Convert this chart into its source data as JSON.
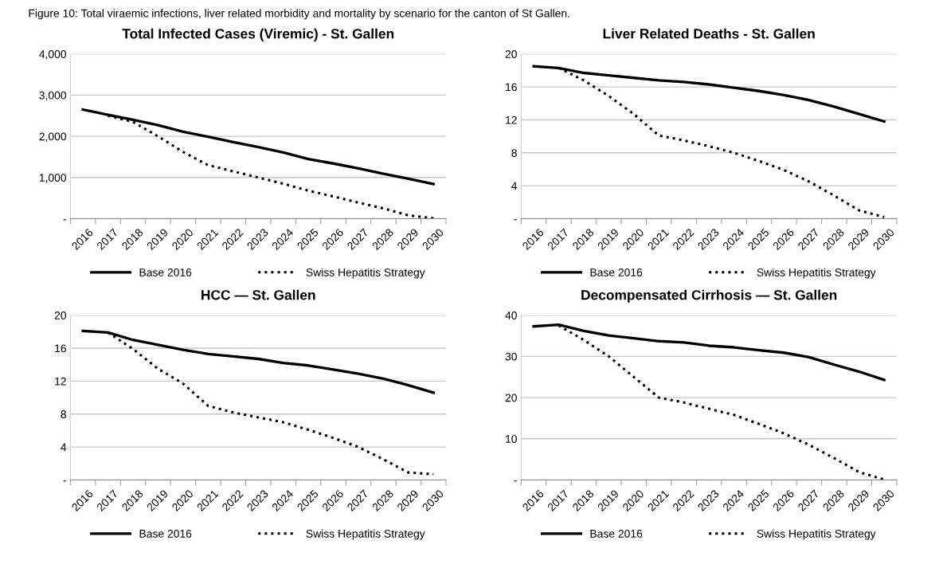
{
  "chart_data": [
    {
      "type": "line",
      "title": "Total Infected Cases (Viremic) - St. Gallen",
      "annotations": [
        "Figure 10: Total viraemic infections, liver related morbidity and mortality by scenario for the canton of St Gallen."
      ],
      "categories": [
        "2016",
        "2017",
        "2018",
        "2019",
        "2020",
        "2021",
        "2022",
        "2023",
        "2024",
        "2025",
        "2026",
        "2027",
        "2028",
        "2029",
        "2030"
      ],
      "series": [
        {
          "name": "Base 2016",
          "color": "#000000",
          "line_style": "solid",
          "values": [
            2650,
            2520,
            2400,
            2270,
            2110,
            1990,
            1860,
            1740,
            1610,
            1450,
            1340,
            1220,
            1090,
            970,
            840
          ]
        },
        {
          "name": "Swiss Hepatitis Strategy",
          "color": "#000000",
          "line_style": "dotted",
          "values": [
            null,
            2500,
            2350,
            2000,
            1620,
            1300,
            1150,
            1000,
            850,
            680,
            540,
            390,
            250,
            80,
            10
          ]
        }
      ],
      "ylim": [
        0,
        4000
      ],
      "yticks": [
        {
          "value": 0,
          "label": "-"
        },
        {
          "value": 1000,
          "label": "1,000"
        },
        {
          "value": 2000,
          "label": "2,000"
        },
        {
          "value": 3000,
          "label": "3,000"
        },
        {
          "value": 4000,
          "label": "4,000"
        }
      ],
      "grid": "y",
      "legend": "bottom"
    },
    {
      "type": "line",
      "title": "Liver Related Deaths - St. Gallen",
      "categories": [
        "2016",
        "2017",
        "2018",
        "2019",
        "2020",
        "2021",
        "2022",
        "2023",
        "2024",
        "2025",
        "2026",
        "2027",
        "2028",
        "2029",
        "2030"
      ],
      "series": [
        {
          "name": "Base 2016",
          "color": "#000000",
          "line_style": "solid",
          "values": [
            18.5,
            18.3,
            17.7,
            17.4,
            17.1,
            16.8,
            16.6,
            16.3,
            15.9,
            15.5,
            15.0,
            14.4,
            13.6,
            12.7,
            11.8
          ]
        },
        {
          "name": "Swiss Hepatitis Strategy",
          "color": "#000000",
          "line_style": "dotted",
          "values": [
            null,
            18.3,
            16.8,
            14.9,
            12.7,
            10.1,
            9.5,
            8.8,
            8.0,
            7.0,
            5.9,
            4.5,
            2.8,
            1.0,
            0.2
          ]
        }
      ],
      "ylim": [
        0,
        20
      ],
      "yticks": [
        {
          "value": 0,
          "label": "-"
        },
        4,
        8,
        12,
        16,
        20
      ],
      "grid": "y",
      "legend": "bottom"
    },
    {
      "type": "line",
      "title": "HCC — St. Gallen",
      "categories": [
        "2016",
        "2017",
        "2018",
        "2019",
        "2020",
        "2021",
        "2022",
        "2023",
        "2024",
        "2025",
        "2026",
        "2027",
        "2028",
        "2029",
        "2030"
      ],
      "series": [
        {
          "name": "Base 2016",
          "color": "#000000",
          "line_style": "solid",
          "values": [
            18.1,
            17.9,
            17.0,
            16.4,
            15.8,
            15.3,
            15.0,
            14.7,
            14.2,
            13.9,
            13.4,
            12.9,
            12.3,
            11.5,
            10.6
          ]
        },
        {
          "name": "Swiss Hepatitis Strategy",
          "color": "#000000",
          "line_style": "dotted",
          "values": [
            null,
            17.9,
            15.9,
            13.5,
            11.7,
            9.0,
            8.2,
            7.6,
            7.0,
            6.1,
            5.1,
            4.0,
            2.5,
            0.9,
            0.7
          ]
        }
      ],
      "ylim": [
        0,
        20
      ],
      "yticks": [
        {
          "value": 0,
          "label": "-"
        },
        4,
        8,
        12,
        16,
        20
      ],
      "grid": "y",
      "legend": "bottom"
    },
    {
      "type": "line",
      "title": "Decompensated Cirrhosis — St. Gallen",
      "categories": [
        "2016",
        "2017",
        "2018",
        "2019",
        "2020",
        "2021",
        "2022",
        "2023",
        "2024",
        "2025",
        "2026",
        "2027",
        "2028",
        "2029",
        "2030"
      ],
      "series": [
        {
          "name": "Base 2016",
          "color": "#000000",
          "line_style": "solid",
          "values": [
            37.3,
            37.7,
            36.2,
            35.1,
            34.4,
            33.7,
            33.4,
            32.6,
            32.2,
            31.5,
            30.9,
            29.8,
            28.0,
            26.3,
            24.3
          ]
        },
        {
          "name": "Swiss Hepatitis Strategy",
          "color": "#000000",
          "line_style": "dotted",
          "values": [
            null,
            37.5,
            34.0,
            30.0,
            25.0,
            20.0,
            18.8,
            17.3,
            15.8,
            13.6,
            11.3,
            8.5,
            5.3,
            1.9,
            0.1
          ]
        }
      ],
      "ylim": [
        0,
        40
      ],
      "yticks": [
        {
          "value": 0,
          "label": "-"
        },
        10,
        20,
        30,
        40
      ],
      "grid": "y",
      "legend": "bottom"
    }
  ]
}
